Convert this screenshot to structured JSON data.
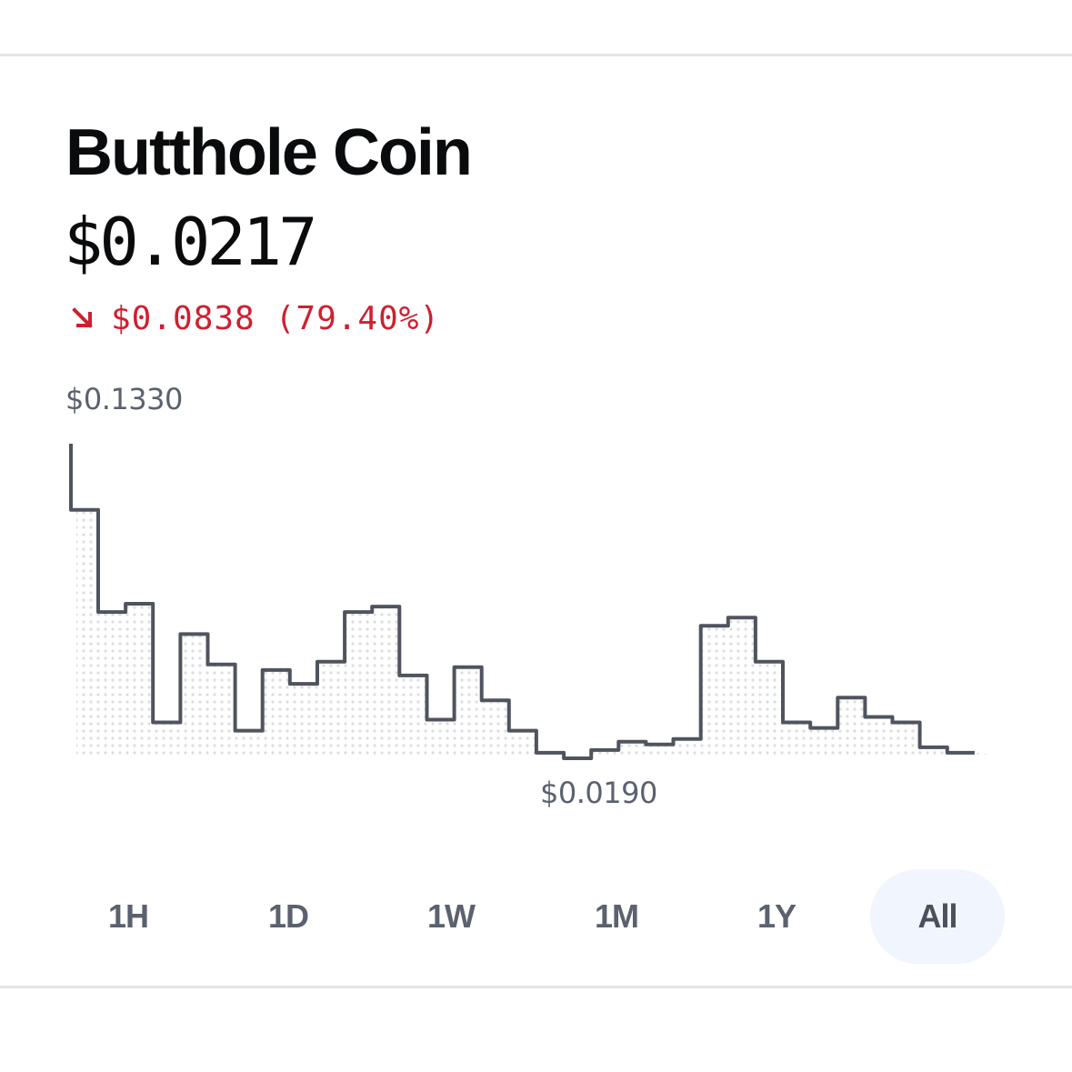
{
  "coin": {
    "name": "Butthole Coin",
    "price": "$0.0217",
    "change_amount": "$0.0838",
    "change_percent": "(79.40%)",
    "direction_icon": "arrow-down-right-icon",
    "change_color": "#cf202f"
  },
  "chart_data": {
    "type": "line",
    "style": "step",
    "high_label": "$0.1330",
    "low_label": "$0.0190",
    "line_color": "#4f545e",
    "fill": "dotted",
    "y_range": [
      0.019,
      0.133
    ],
    "values": [
      0.133,
      0.109,
      0.072,
      0.075,
      0.032,
      0.064,
      0.053,
      0.029,
      0.051,
      0.046,
      0.054,
      0.072,
      0.074,
      0.049,
      0.033,
      0.052,
      0.04,
      0.029,
      0.021,
      0.019,
      0.022,
      0.025,
      0.024,
      0.026,
      0.067,
      0.07,
      0.054,
      0.032,
      0.03,
      0.041,
      0.034,
      0.032,
      0.023,
      0.021
    ]
  },
  "time_ranges": {
    "items": [
      "1H",
      "1D",
      "1W",
      "1M",
      "1Y",
      "All"
    ],
    "selected": "All"
  }
}
